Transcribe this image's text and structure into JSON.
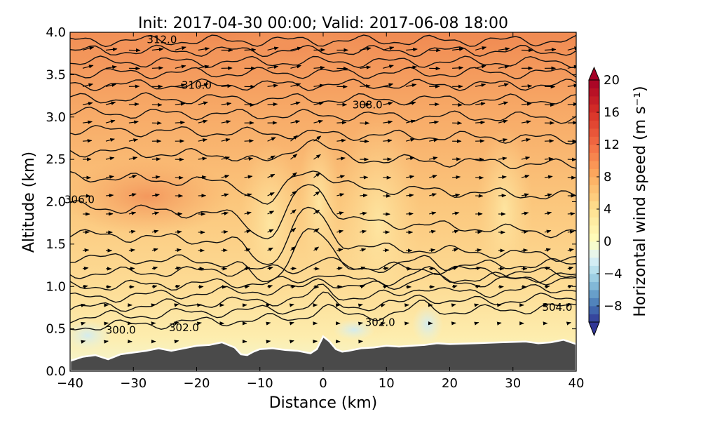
{
  "chart_data": {
    "type": "contour",
    "title": "Init: 2017-04-30 00:00; Valid: 2017-06-08 18:00",
    "xlabel": "Distance (km)",
    "ylabel": "Altitude (km)",
    "xlim": [
      -40,
      40
    ],
    "ylim": [
      0,
      4
    ],
    "xticks": [
      -40,
      -30,
      -20,
      -10,
      0,
      10,
      20,
      30,
      40
    ],
    "xtick_labels": [
      "−40",
      "−30",
      "−20",
      "−10",
      "0",
      "10",
      "20",
      "30",
      "40"
    ],
    "yticks": [
      0.0,
      0.5,
      1.0,
      1.5,
      2.0,
      2.5,
      3.0,
      3.5,
      4.0
    ],
    "ytick_labels": [
      "0.0",
      "0.5",
      "1.0",
      "1.5",
      "2.0",
      "2.5",
      "3.0",
      "3.5",
      "4.0"
    ],
    "colorbar": {
      "label": "Horizontal wind speed (m s⁻¹)",
      "range": [
        -10,
        20
      ],
      "ticks": [
        -8,
        -4,
        0,
        4,
        8,
        12,
        16,
        20
      ],
      "tick_labels": [
        "−8",
        "−4",
        "0",
        "4",
        "8",
        "12",
        "16",
        "20"
      ],
      "extend": "both",
      "colormap": "RdYlBu_r"
    },
    "contour_labels": [
      {
        "text": "312.0",
        "x": -25.5,
        "y": 3.89
      },
      {
        "text": "310.0",
        "x": -20,
        "y": 3.35
      },
      {
        "text": "308.0",
        "x": 7,
        "y": 3.12
      },
      {
        "text": "306.0",
        "x": -38.5,
        "y": 2.0
      },
      {
        "text": "304.0",
        "x": 37,
        "y": 0.73
      },
      {
        "text": "302.0",
        "x": 9,
        "y": 0.55
      },
      {
        "text": "302.0",
        "x": -22,
        "y": 0.49
      },
      {
        "text": "300.0",
        "x": -32,
        "y": 0.46
      }
    ],
    "terrain": [
      [
        -40,
        0.12
      ],
      [
        -38,
        0.17
      ],
      [
        -36,
        0.19
      ],
      [
        -34,
        0.14
      ],
      [
        -32,
        0.2
      ],
      [
        -30,
        0.22
      ],
      [
        -28,
        0.24
      ],
      [
        -26,
        0.27
      ],
      [
        -24,
        0.24
      ],
      [
        -22,
        0.27
      ],
      [
        -20,
        0.3
      ],
      [
        -18,
        0.31
      ],
      [
        -16,
        0.34
      ],
      [
        -14,
        0.28
      ],
      [
        -13,
        0.2
      ],
      [
        -12,
        0.19
      ],
      [
        -11,
        0.23
      ],
      [
        -10,
        0.26
      ],
      [
        -8,
        0.27
      ],
      [
        -6,
        0.25
      ],
      [
        -4,
        0.24
      ],
      [
        -2,
        0.21
      ],
      [
        -1,
        0.26
      ],
      [
        0,
        0.41
      ],
      [
        1,
        0.35
      ],
      [
        2,
        0.26
      ],
      [
        3,
        0.23
      ],
      [
        4,
        0.24
      ],
      [
        6,
        0.27
      ],
      [
        8,
        0.28
      ],
      [
        10,
        0.3
      ],
      [
        12,
        0.29
      ],
      [
        14,
        0.3
      ],
      [
        16,
        0.31
      ],
      [
        18,
        0.33
      ],
      [
        20,
        0.32
      ],
      [
        24,
        0.33
      ],
      [
        28,
        0.34
      ],
      [
        32,
        0.35
      ],
      [
        34,
        0.33
      ],
      [
        36,
        0.34
      ],
      [
        38,
        0.37
      ],
      [
        40,
        0.32
      ]
    ]
  }
}
